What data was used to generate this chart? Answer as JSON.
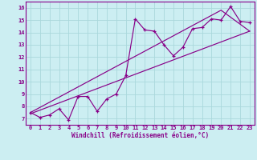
{
  "bg_color": "#cceef2",
  "grid_color": "#aad8dc",
  "line_color": "#880088",
  "spine_color": "#880088",
  "title": "Windchill (Refroidissement éolien,°C)",
  "xlim": [
    -0.5,
    23.5
  ],
  "ylim": [
    6.5,
    16.5
  ],
  "xticks": [
    0,
    1,
    2,
    3,
    4,
    5,
    6,
    7,
    8,
    9,
    10,
    11,
    12,
    13,
    14,
    15,
    16,
    17,
    18,
    19,
    20,
    21,
    22,
    23
  ],
  "yticks": [
    7,
    8,
    9,
    10,
    11,
    12,
    13,
    14,
    15,
    16
  ],
  "data_x": [
    0,
    1,
    2,
    3,
    4,
    5,
    6,
    7,
    8,
    9,
    10,
    11,
    12,
    13,
    14,
    15,
    16,
    17,
    18,
    19,
    20,
    21,
    22,
    23
  ],
  "data_y": [
    7.5,
    7.1,
    7.3,
    7.8,
    6.9,
    8.8,
    8.8,
    7.6,
    8.6,
    9.0,
    10.5,
    15.1,
    14.2,
    14.1,
    13.0,
    12.1,
    12.8,
    14.3,
    14.4,
    15.1,
    15.0,
    16.1,
    14.9,
    14.8
  ],
  "line1_x": [
    0,
    23
  ],
  "line1_y": [
    7.4,
    14.1
  ],
  "line2_x": [
    0,
    20,
    23
  ],
  "line2_y": [
    7.5,
    15.8,
    14.1
  ],
  "tick_fontsize": 5.0,
  "label_fontsize": 5.5
}
